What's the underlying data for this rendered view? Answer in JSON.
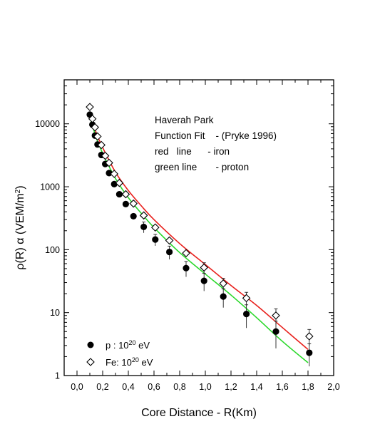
{
  "chart_data": {
    "type": "scatter",
    "xlabel": "Core Distance - R(Km)",
    "ylabel_text": "ρ(R) α (VEM/m",
    "ylabel_sup": "2",
    "ylabel_close": ")",
    "xlim": [
      -0.1,
      2.0
    ],
    "ylim": [
      1,
      50000
    ],
    "yscale": "log",
    "x_ticks": [
      0.0,
      0.2,
      0.4,
      0.6,
      0.8,
      1.0,
      1.2,
      1.4,
      1.6,
      1.8,
      2.0
    ],
    "x_tick_labels": [
      "0,0",
      "0,2",
      "0,4",
      "0,6",
      "0,8",
      "1,0",
      "1,2",
      "1,4",
      "1,6",
      "1,8",
      "2,0"
    ],
    "y_ticks": [
      1,
      10,
      100,
      1000,
      10000
    ],
    "y_tick_labels": [
      "1",
      "10",
      "100",
      "1000",
      "10000"
    ],
    "annotations": [
      "Haverah Park",
      "Function Fit    - (Pryke 1996)",
      "red   line      - iron",
      "green line       - proton"
    ],
    "series": [
      {
        "name": "p : 10",
        "name_sup": "20",
        "name_suffix": " eV",
        "marker": "filled-circle",
        "x": [
          0.1,
          0.12,
          0.14,
          0.16,
          0.19,
          0.22,
          0.25,
          0.29,
          0.33,
          0.38,
          0.44,
          0.52,
          0.61,
          0.72,
          0.85,
          0.99,
          1.14,
          1.32,
          1.55,
          1.81
        ],
        "y": [
          14000,
          9700,
          6500,
          4700,
          3200,
          2300,
          1650,
          1100,
          760,
          530,
          340,
          230,
          145,
          92,
          51,
          32,
          18,
          9.5,
          5.0,
          2.3
        ],
        "err": [
          0,
          0,
          0,
          0,
          0,
          0,
          0,
          0,
          0,
          0,
          0,
          45,
          30,
          22,
          14,
          10,
          6,
          3.8,
          2.3,
          0.9
        ]
      },
      {
        "name": "Fe: 10",
        "name_sup": "20",
        "name_suffix": " eV",
        "marker": "open-diamond",
        "x": [
          0.1,
          0.12,
          0.14,
          0.16,
          0.19,
          0.22,
          0.25,
          0.29,
          0.33,
          0.38,
          0.44,
          0.52,
          0.61,
          0.72,
          0.85,
          0.99,
          1.14,
          1.32,
          1.55,
          1.81
        ],
        "y": [
          18500,
          12000,
          8800,
          6300,
          4600,
          3100,
          2400,
          1600,
          1150,
          760,
          540,
          350,
          225,
          140,
          88,
          52,
          29,
          17,
          9.0,
          4.2
        ],
        "err": [
          0,
          0,
          0,
          0,
          0,
          0,
          0,
          0,
          0,
          0,
          0,
          0,
          0,
          0,
          0,
          10,
          6,
          4,
          2.5,
          1.2
        ]
      }
    ],
    "fit_lines": [
      {
        "color": "#e8201c",
        "x": [
          0.1,
          0.15,
          0.2,
          0.3,
          0.4,
          0.5,
          0.6,
          0.8,
          1.0,
          1.2,
          1.4,
          1.6,
          1.8
        ],
        "y": [
          15500,
          7200,
          4200,
          1700,
          870,
          500,
          300,
          125,
          58,
          27,
          13,
          5.8,
          2.6
        ]
      },
      {
        "color": "#2ad82a",
        "x": [
          0.1,
          0.15,
          0.2,
          0.3,
          0.4,
          0.5,
          0.6,
          0.8,
          1.0,
          1.2,
          1.4,
          1.6,
          1.8
        ],
        "y": [
          13000,
          6000,
          3400,
          1350,
          670,
          380,
          225,
          90,
          41,
          19,
          8.3,
          3.5,
          1.6
        ]
      }
    ]
  }
}
